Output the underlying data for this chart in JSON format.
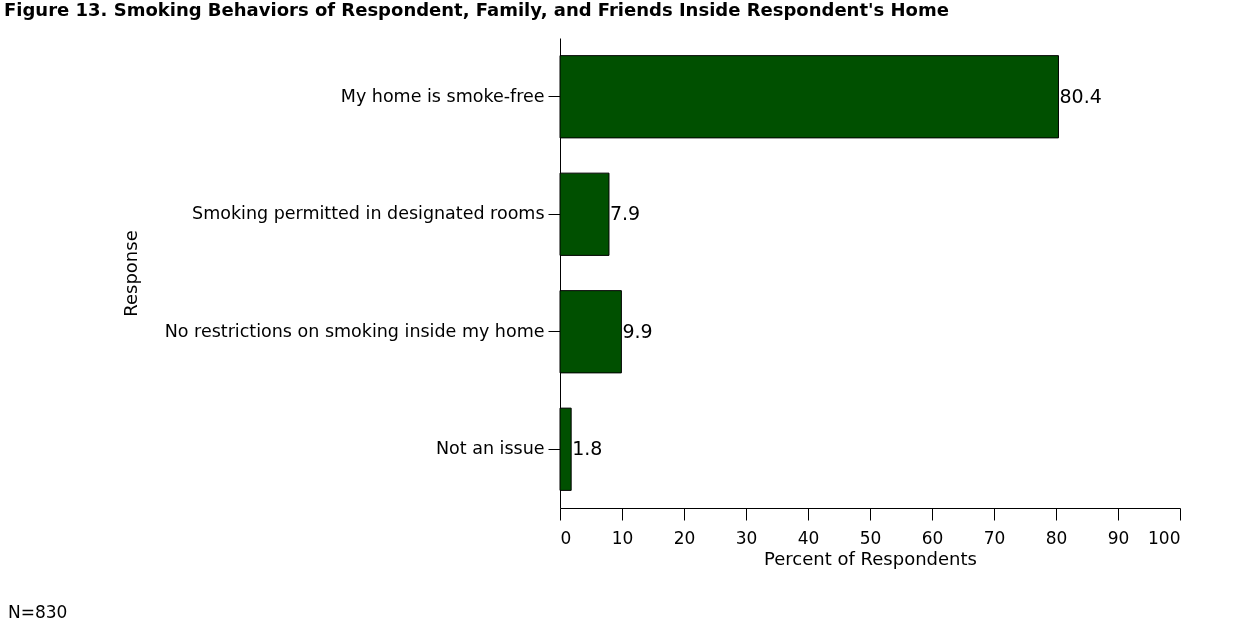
{
  "chart_data": {
    "type": "bar",
    "orientation": "horizontal",
    "title": "Figure 13. Smoking Behaviors of Respondent, Family, and Friends Inside Respondent's Home",
    "categories": [
      "My home is smoke-free",
      "Smoking permitted in designated rooms",
      "No restrictions on smoking inside my home",
      "Not an issue"
    ],
    "values": [
      80.4,
      7.9,
      9.9,
      1.8
    ],
    "color": "#005000",
    "xlim": [
      0,
      100
    ],
    "xticks": [
      0,
      10,
      20,
      30,
      40,
      50,
      60,
      70,
      80,
      90,
      100
    ],
    "xlabel": "Percent of Respondents",
    "ylabel": "Response",
    "data_labels": true,
    "grid": false,
    "annotations": [
      "N=830"
    ]
  }
}
